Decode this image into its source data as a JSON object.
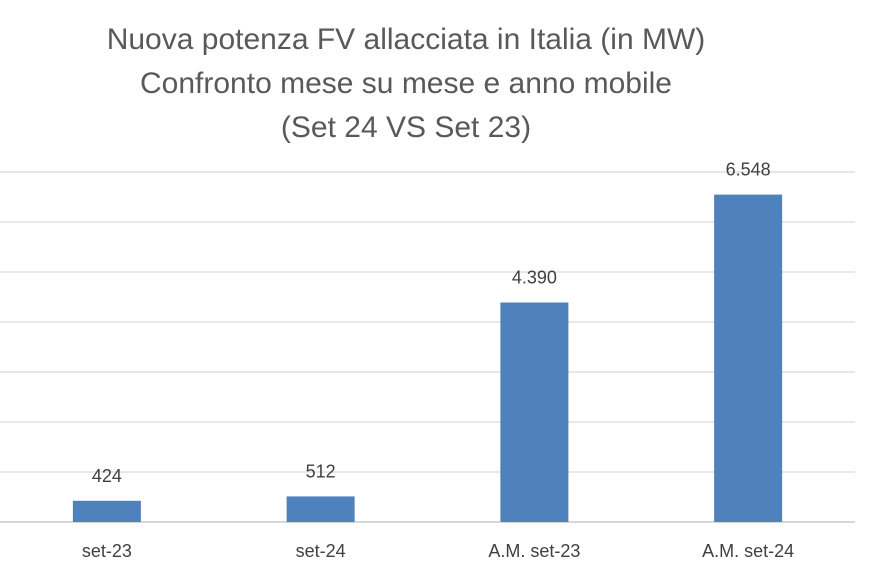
{
  "chart_data": {
    "type": "bar",
    "title_lines": [
      "Nuova potenza FV allacciata in Italia (in MW)",
      "Confronto mese su mese e anno mobile",
      "(Set 24 VS Set 23)"
    ],
    "categories": [
      "set-23",
      "set-24",
      "A.M. set-23",
      "A.M. set-24"
    ],
    "values": [
      424,
      512,
      4390,
      6548
    ],
    "value_labels": [
      "424",
      "512",
      "4.390",
      "6.548"
    ],
    "ylim": [
      0,
      7000
    ],
    "grid": true,
    "bar_color": "#4f81bd",
    "grid_color": "#d9d9d9"
  }
}
